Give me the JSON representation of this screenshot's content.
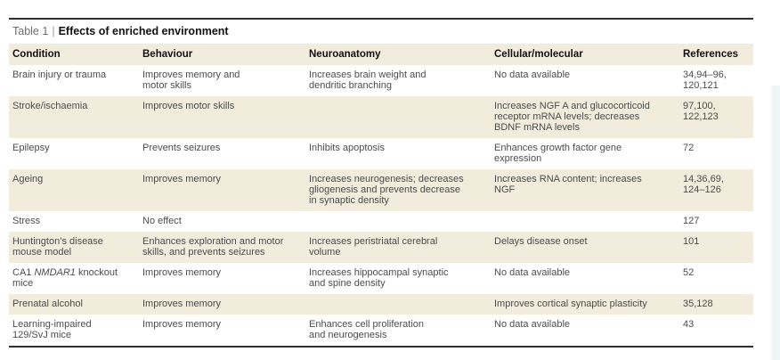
{
  "page": {
    "title_prefix": "Table 1",
    "title_separator": "|",
    "title": "Effects of enriched environment"
  },
  "table": {
    "columns": [
      "Condition",
      "Behaviour",
      "Neuroanatomy",
      "Cellular/molecular",
      "References"
    ],
    "rows": [
      {
        "condition": "Brain injury or trauma",
        "behaviour": "Improves memory and\nmotor skills",
        "neuroanatomy": "Increases brain weight and\ndendritic branching",
        "cellular": "No data available",
        "references": "34,94–96,\n120,121"
      },
      {
        "condition": "Stroke/ischaemia",
        "behaviour": "Improves motor skills",
        "neuroanatomy": "",
        "cellular": "Increases NGF A and glucocorticoid\nreceptor mRNA levels; decreases\nBDNF mRNA levels",
        "references": "97,100,\n122,123"
      },
      {
        "condition": "Epilepsy",
        "behaviour": "Prevents seizures",
        "neuroanatomy": "Inhibits apoptosis",
        "cellular": "Enhances growth factor gene\nexpression",
        "references": "72"
      },
      {
        "condition": "Ageing",
        "behaviour": "Improves memory",
        "neuroanatomy": "Increases neurogenesis; decreases\ngliogenesis and prevents decrease\nin synaptic density",
        "cellular": "Increases RNA content; increases\nNGF",
        "references": "14,36,69,\n124–126"
      },
      {
        "condition": "Stress",
        "behaviour": "No effect",
        "neuroanatomy": "",
        "cellular": "",
        "references": "127"
      },
      {
        "condition": "Huntington’s disease\nmouse model",
        "behaviour": "Enhances exploration and motor\nskills, and prevents seizures",
        "neuroanatomy": "Increases peristriatal cerebral\nvolume",
        "cellular": "Delays disease onset",
        "references": "101"
      },
      {
        "condition_parts": [
          "CA1 ",
          "NMDAR1",
          " knockout\nmice"
        ],
        "behaviour": "Improves memory",
        "neuroanatomy": "Increases hippocampal synaptic\nand spine density",
        "cellular": "No data available",
        "references": "52"
      },
      {
        "condition": "Prenatal alcohol",
        "behaviour": "Improves memory",
        "neuroanatomy": "",
        "cellular": "Improves cortical synaptic plasticity",
        "references": "35,128"
      },
      {
        "condition": "Learning-impaired\n129/SvJ mice",
        "behaviour": "Improves memory",
        "neuroanatomy": "Enhances cell proliferation\nand neurogenesis",
        "cellular": "No data available",
        "references": "43"
      }
    ]
  },
  "colors": {
    "row_shading": "#f2ecdd",
    "rule": "#2e2e2e",
    "body_text": "#4c4c4c",
    "heading_text": "#111111"
  }
}
